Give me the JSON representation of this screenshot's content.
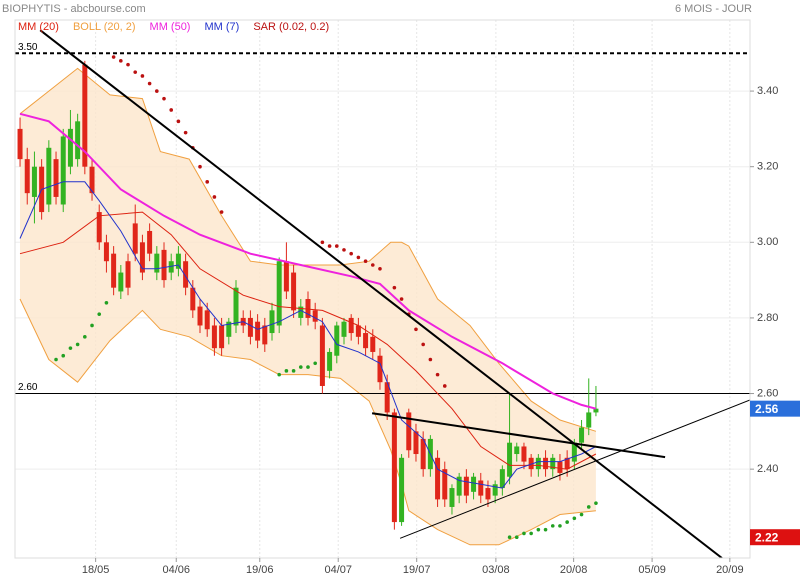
{
  "chart_data": {
    "type": "candlestick",
    "title": "BIOPHYTIS - abcbourse.com",
    "subtitle": "6 MOIS - JOUR",
    "xlim": [
      -0.7,
      101.4
    ],
    "xticks": [
      {
        "value": 10.5,
        "label": "18/05"
      },
      {
        "value": 21.7,
        "label": "04/06"
      },
      {
        "value": 33.3,
        "label": "19/06"
      },
      {
        "value": 44.2,
        "label": "04/07"
      },
      {
        "value": 55.1,
        "label": "19/07"
      },
      {
        "value": 66.1,
        "label": "03/08"
      },
      {
        "value": 76.9,
        "label": "20/08"
      },
      {
        "value": 87.8,
        "label": "05/09"
      },
      {
        "value": 98.6,
        "label": "20/09"
      }
    ],
    "ylim": [
      2.165,
      3.588
    ],
    "yticks": [
      {
        "value": 2.4,
        "label": "2.40"
      },
      {
        "value": 2.6,
        "label": "2.60"
      },
      {
        "value": 2.8,
        "label": "2.80"
      },
      {
        "value": 3.0,
        "label": "3.00"
      },
      {
        "value": 3.2,
        "label": "3.20"
      },
      {
        "value": 3.4,
        "label": "3.40"
      }
    ],
    "grid": true,
    "up_color": "#33b322",
    "down_color": "#e0261a",
    "candles": {
      "open": [
        3.3,
        3.22,
        3.12,
        3.2,
        3.1,
        3.22,
        3.1,
        3.2,
        3.22,
        3.47,
        3.2,
        3.08,
        3.0,
        2.97,
        2.87,
        2.95,
        3.05,
        3.0,
        3.03,
        2.92,
        2.98,
        2.92,
        2.93,
        2.95,
        2.88,
        2.83,
        2.82,
        2.78,
        2.78,
        2.75,
        2.78,
        2.8,
        2.8,
        2.79,
        2.78,
        2.76,
        2.78,
        2.95,
        2.92,
        2.8,
        2.85,
        2.82,
        2.78,
        2.66,
        2.7,
        2.75,
        2.8,
        2.78,
        2.76,
        2.75,
        2.7,
        2.63,
        2.55,
        2.26,
        2.55,
        2.5,
        2.48,
        2.4,
        2.43,
        2.4,
        2.3,
        2.33,
        2.38,
        2.34,
        2.37,
        2.35,
        2.33,
        2.35,
        2.38,
        2.44,
        2.46,
        2.43,
        2.4,
        2.43,
        2.4,
        2.42,
        2.43,
        2.42,
        2.47,
        2.51,
        2.55
      ],
      "high": [
        3.33,
        3.25,
        3.24,
        3.22,
        3.27,
        3.24,
        3.3,
        3.35,
        3.34,
        3.48,
        3.22,
        3.1,
        3.02,
        2.99,
        2.94,
        2.97,
        3.1,
        3.02,
        3.05,
        2.99,
        3.0,
        2.97,
        2.99,
        2.97,
        2.9,
        2.85,
        2.84,
        2.8,
        2.8,
        2.8,
        2.9,
        2.82,
        2.82,
        2.81,
        2.8,
        2.84,
        2.96,
        3.0,
        2.94,
        2.85,
        2.87,
        2.84,
        2.8,
        2.72,
        2.79,
        2.8,
        2.81,
        2.8,
        2.78,
        2.77,
        2.72,
        2.65,
        2.56,
        2.44,
        2.56,
        2.52,
        2.5,
        2.49,
        2.45,
        2.42,
        2.36,
        2.39,
        2.4,
        2.39,
        2.39,
        2.37,
        2.37,
        2.41,
        2.6,
        2.47,
        2.47,
        2.44,
        2.44,
        2.45,
        2.44,
        2.44,
        2.45,
        2.48,
        2.53,
        2.64,
        2.62
      ],
      "low": [
        3.2,
        3.1,
        3.05,
        3.06,
        3.08,
        3.1,
        3.08,
        3.18,
        3.2,
        3.18,
        3.11,
        2.98,
        2.92,
        2.86,
        2.85,
        2.86,
        2.95,
        2.9,
        2.95,
        2.9,
        2.88,
        2.9,
        2.91,
        2.86,
        2.8,
        2.76,
        2.75,
        2.7,
        2.7,
        2.73,
        2.76,
        2.76,
        2.73,
        2.72,
        2.71,
        2.74,
        2.76,
        2.85,
        2.8,
        2.78,
        2.78,
        2.77,
        2.6,
        2.64,
        2.68,
        2.73,
        2.74,
        2.73,
        2.7,
        2.69,
        2.61,
        2.53,
        2.24,
        2.25,
        2.43,
        2.42,
        2.38,
        2.38,
        2.3,
        2.3,
        2.28,
        2.31,
        2.31,
        2.32,
        2.31,
        2.3,
        2.31,
        2.33,
        2.36,
        2.42,
        2.4,
        2.38,
        2.38,
        2.38,
        2.38,
        2.37,
        2.38,
        2.4,
        2.45,
        2.49,
        2.54
      ],
      "close": [
        3.22,
        3.13,
        3.2,
        3.08,
        3.25,
        3.12,
        3.28,
        3.3,
        3.32,
        3.2,
        3.13,
        3.0,
        2.95,
        2.88,
        2.92,
        2.88,
        2.97,
        2.92,
        2.97,
        2.97,
        2.9,
        2.95,
        2.97,
        2.88,
        2.82,
        2.78,
        2.77,
        2.72,
        2.72,
        2.79,
        2.88,
        2.78,
        2.75,
        2.74,
        2.73,
        2.82,
        2.95,
        2.87,
        2.82,
        2.83,
        2.8,
        2.79,
        2.62,
        2.71,
        2.78,
        2.79,
        2.76,
        2.75,
        2.72,
        2.71,
        2.63,
        2.55,
        2.26,
        2.43,
        2.45,
        2.44,
        2.4,
        2.48,
        2.32,
        2.32,
        2.35,
        2.38,
        2.33,
        2.38,
        2.33,
        2.32,
        2.36,
        2.4,
        2.47,
        2.46,
        2.42,
        2.4,
        2.43,
        2.4,
        2.43,
        2.39,
        2.4,
        2.47,
        2.51,
        2.55,
        2.56
      ]
    },
    "bollinger": {
      "name": "BOLL (20, 2)",
      "color": "#f0a040",
      "fill": "#fde6cc",
      "x": [
        0,
        4,
        8,
        12.5,
        17,
        19.5,
        23.5,
        28,
        32,
        36,
        40,
        44.5,
        48.5,
        51.5,
        53,
        54,
        58,
        62.5,
        66.5,
        71,
        75,
        80
      ],
      "upper": [
        3.34,
        3.4,
        3.46,
        3.39,
        3.38,
        3.24,
        3.22,
        3.07,
        2.95,
        2.94,
        2.94,
        2.94,
        2.95,
        3.0,
        3.0,
        2.99,
        2.85,
        2.78,
        2.68,
        2.58,
        2.53,
        2.5
      ],
      "lower": [
        2.85,
        2.69,
        2.63,
        2.74,
        2.82,
        2.77,
        2.75,
        2.7,
        2.69,
        2.65,
        2.65,
        2.64,
        2.58,
        2.45,
        2.36,
        2.29,
        2.24,
        2.2,
        2.2,
        2.24,
        2.28,
        2.29
      ]
    },
    "series": [
      {
        "name": "MM (20)",
        "color": "#dd2211",
        "width": 1,
        "x": [
          0,
          6,
          11,
          17,
          21,
          25,
          31,
          36,
          42,
          47,
          51,
          55,
          60,
          64,
          68,
          72,
          76,
          80
        ],
        "values": [
          2.97,
          3.0,
          3.07,
          3.08,
          3.02,
          2.93,
          2.86,
          2.83,
          2.82,
          2.78,
          2.73,
          2.66,
          2.56,
          2.46,
          2.41,
          2.41,
          2.4,
          2.44
        ]
      },
      {
        "name": "MM (50)",
        "color": "#ee22dd",
        "width": 2,
        "x": [
          0,
          4,
          9,
          14,
          20,
          25,
          32,
          39,
          46,
          50,
          54,
          60,
          67,
          74,
          78,
          80
        ],
        "values": [
          3.34,
          3.32,
          3.24,
          3.14,
          3.07,
          3.02,
          2.97,
          2.94,
          2.91,
          2.89,
          2.82,
          2.75,
          2.68,
          2.6,
          2.57,
          2.56
        ]
      },
      {
        "name": "MM (7)",
        "color": "#2233cc",
        "width": 1,
        "x": [
          0,
          3,
          6,
          9,
          11,
          14,
          17,
          19,
          22,
          25,
          28,
          31,
          33,
          36,
          39,
          42,
          44,
          47,
          50,
          53,
          56,
          58,
          61,
          64,
          67,
          69,
          72,
          75,
          78,
          80
        ],
        "values": [
          3.01,
          3.14,
          3.16,
          3.16,
          3.11,
          3.03,
          2.93,
          2.93,
          2.94,
          2.85,
          2.78,
          2.79,
          2.77,
          2.79,
          2.82,
          2.79,
          2.73,
          2.71,
          2.68,
          2.53,
          2.48,
          2.4,
          2.37,
          2.36,
          2.35,
          2.4,
          2.42,
          2.42,
          2.44,
          2.46
        ]
      }
    ],
    "sar": {
      "name": "SAR (0.02, 0.2)",
      "color": "#bb1111",
      "segments": [
        {
          "color": "#22a022",
          "x": [
            5,
            6,
            7,
            8,
            9,
            10,
            11,
            12
          ],
          "values": [
            2.69,
            2.7,
            2.72,
            2.73,
            2.75,
            2.78,
            2.81,
            2.84
          ]
        },
        {
          "color": "#bb1111",
          "x": [
            13,
            14,
            15,
            16,
            17,
            18,
            19,
            20,
            21,
            22,
            23,
            24,
            25,
            26,
            27,
            28
          ],
          "values": [
            3.49,
            3.48,
            3.47,
            3.45,
            3.44,
            3.42,
            3.4,
            3.38,
            3.35,
            3.32,
            3.29,
            3.25,
            3.2,
            3.16,
            3.12,
            3.08
          ]
        },
        {
          "color": "#22a022",
          "x": [
            36,
            37,
            38,
            39,
            40,
            41
          ],
          "values": [
            2.65,
            2.66,
            2.66,
            2.67,
            2.67,
            2.68
          ]
        },
        {
          "color": "#bb1111",
          "x": [
            42,
            43,
            44,
            45,
            46,
            47,
            48,
            49,
            50
          ],
          "values": [
            3.0,
            2.99,
            2.99,
            2.98,
            2.97,
            2.96,
            2.95,
            2.94,
            2.93
          ]
        },
        {
          "color": "#bb1111",
          "x": [
            52,
            53,
            54,
            55,
            56,
            57,
            58,
            59
          ],
          "values": [
            2.88,
            2.85,
            2.81,
            2.77,
            2.73,
            2.69,
            2.65,
            2.62
          ]
        },
        {
          "color": "#22a022",
          "x": [
            68,
            69,
            70,
            71,
            72,
            73,
            74,
            75,
            76,
            77,
            78,
            79,
            80
          ],
          "values": [
            2.22,
            2.22,
            2.23,
            2.23,
            2.24,
            2.24,
            2.25,
            2.25,
            2.26,
            2.27,
            2.28,
            2.3,
            2.31
          ]
        }
      ]
    },
    "trendlines": [
      {
        "x": [
          2.8,
          97.5
        ],
        "values": [
          3.561,
          2.165
        ],
        "width": 2
      },
      {
        "x": [
          48.9,
          89.6
        ],
        "values": [
          2.548,
          2.432
        ],
        "width": 2
      },
      {
        "x": [
          52.8,
          101.4
        ],
        "values": [
          2.217,
          2.583
        ],
        "width": 1
      }
    ],
    "hlines": [
      {
        "value": 3.5,
        "label": "3.50",
        "dashed": true
      },
      {
        "value": 2.6,
        "label": "2.60",
        "dashed": false
      }
    ],
    "price_markers": [
      {
        "value": 2.56,
        "color": "#2a6fdb"
      },
      {
        "value": 2.22,
        "color": "#dd1111"
      }
    ]
  }
}
